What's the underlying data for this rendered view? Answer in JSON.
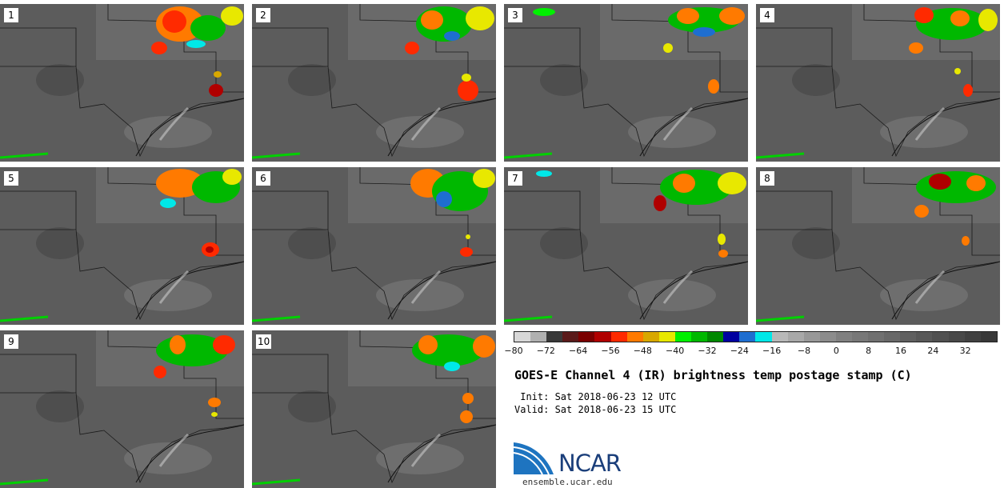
{
  "panels": [
    {
      "label": "1"
    },
    {
      "label": "2"
    },
    {
      "label": "3"
    },
    {
      "label": "4"
    },
    {
      "label": "5"
    },
    {
      "label": "6"
    },
    {
      "label": "7"
    },
    {
      "label": "8"
    },
    {
      "label": "9"
    },
    {
      "label": "10"
    }
  ],
  "colorbar": {
    "colors": [
      "#d8d8d8",
      "#b0b0b0",
      "#383838",
      "#5a1a1a",
      "#7a0000",
      "#b00000",
      "#ff2a00",
      "#ff7a00",
      "#d8a800",
      "#e8e800",
      "#00f000",
      "#00b800",
      "#008800",
      "#0000a0",
      "#1e6ed0",
      "#00e8e8",
      "#b8b8b8",
      "#a8a8a8",
      "#989898",
      "#8c8c8c",
      "#808080",
      "#787878",
      "#707070",
      "#686868",
      "#606060",
      "#585858",
      "#505050",
      "#484848",
      "#404040",
      "#383838"
    ],
    "tick_labels": [
      "−80",
      "−72",
      "−64",
      "−56",
      "−48",
      "−40",
      "−32",
      "−24",
      "−16",
      "−8",
      "0",
      "8",
      "16",
      "24",
      "32"
    ]
  },
  "title": "GOES-E Channel 4 (IR) brightness temp postage stamp (C)",
  "init": " Init: Sat 2018-06-23 12 UTC",
  "valid": "Valid: Sat 2018-06-23 15 UTC",
  "logo_text": "NCAR",
  "url": "ensemble.ucar.edu"
}
